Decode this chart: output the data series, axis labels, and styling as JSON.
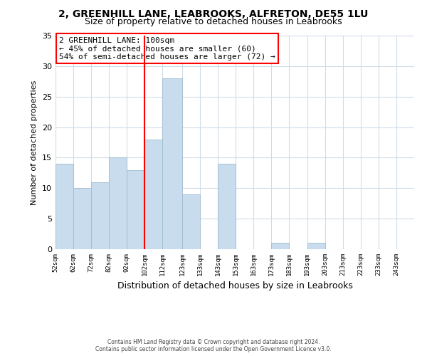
{
  "title": "2, GREENHILL LANE, LEABROOKS, ALFRETON, DE55 1LU",
  "subtitle": "Size of property relative to detached houses in Leabrooks",
  "xlabel": "Distribution of detached houses by size in Leabrooks",
  "ylabel": "Number of detached properties",
  "bar_color": "#c8dced",
  "bar_edge_color": "#a0bcd0",
  "vline_x": 102,
  "vline_color": "red",
  "annotation_line1": "2 GREENHILL LANE: 100sqm",
  "annotation_line2": "← 45% of detached houses are smaller (60)",
  "annotation_line3": "54% of semi-detached houses are larger (72) →",
  "annotation_box_color": "white",
  "annotation_box_edge": "red",
  "bins": [
    52,
    62,
    72,
    82,
    92,
    102,
    112,
    123,
    133,
    143,
    153,
    163,
    173,
    183,
    193,
    203,
    213,
    223,
    233,
    243,
    253
  ],
  "counts": [
    14,
    10,
    11,
    15,
    13,
    18,
    28,
    9,
    0,
    14,
    0,
    0,
    1,
    0,
    1,
    0,
    0,
    0,
    0,
    0
  ],
  "ylim": [
    0,
    35
  ],
  "yticks": [
    0,
    5,
    10,
    15,
    20,
    25,
    30,
    35
  ],
  "footer_line1": "Contains HM Land Registry data © Crown copyright and database right 2024.",
  "footer_line2": "Contains public sector information licensed under the Open Government Licence v3.0.",
  "background_color": "#ffffff",
  "plot_background": "#ffffff",
  "grid_color": "#d0dce8",
  "title_fontsize": 10,
  "subtitle_fontsize": 9,
  "ann_fontsize": 8,
  "ylabel_fontsize": 8,
  "xlabel_fontsize": 9
}
